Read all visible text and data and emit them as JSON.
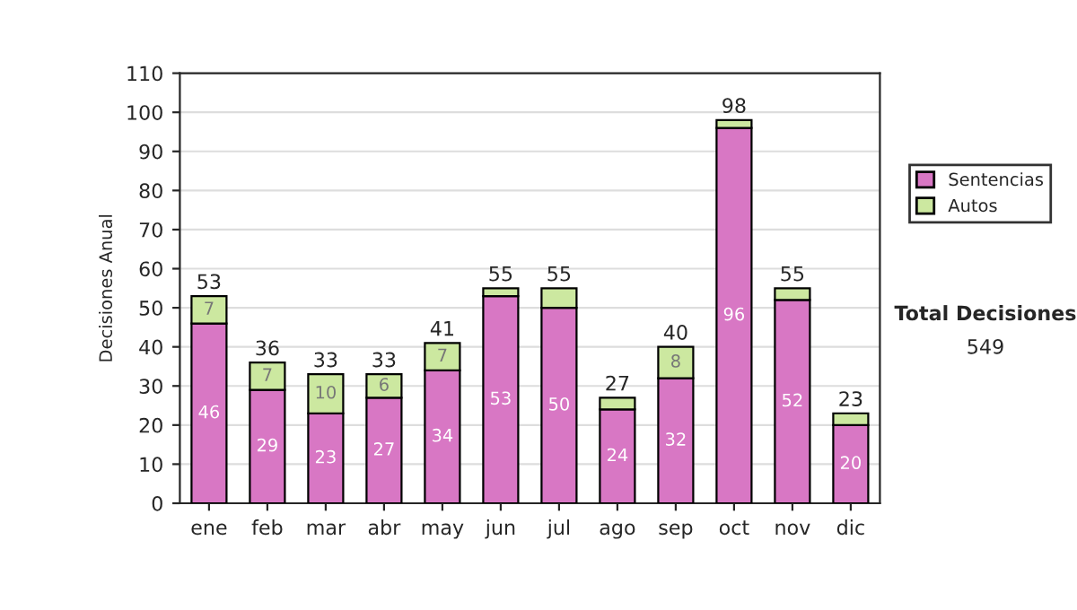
{
  "chart_data": {
    "type": "bar",
    "stacked": true,
    "ylabel": "Decisiones Anual",
    "categories": [
      "ene",
      "feb",
      "mar",
      "abr",
      "may",
      "jun",
      "jul",
      "ago",
      "sep",
      "oct",
      "nov",
      "dic"
    ],
    "series": [
      {
        "name": "Sentencias",
        "color": "#d877c4",
        "values": [
          46,
          29,
          23,
          27,
          34,
          53,
          50,
          24,
          32,
          96,
          52,
          20
        ],
        "value_labels": [
          "46",
          "29",
          "23",
          "27",
          "34",
          "53",
          "50",
          "24",
          "32",
          "96",
          "52",
          "20"
        ]
      },
      {
        "name": "Autos",
        "color": "#cce8a0",
        "values": [
          7,
          7,
          10,
          6,
          7,
          2,
          5,
          3,
          8,
          2,
          3,
          3
        ],
        "value_labels": [
          "7",
          "7",
          "10",
          "6",
          "7",
          null,
          null,
          null,
          "8",
          null,
          null,
          null
        ]
      }
    ],
    "totals": [
      "53",
      "36",
      "33",
      "33",
      "41",
      "55",
      "55",
      "27",
      "40",
      "98",
      "55",
      "23"
    ],
    "ylim": [
      0,
      110
    ],
    "yticks": [
      0,
      10,
      20,
      30,
      40,
      50,
      60,
      70,
      80,
      90,
      100,
      110
    ],
    "grid": "y",
    "legend": "right",
    "annotations": [
      "Total Decisiones",
      "549"
    ]
  }
}
